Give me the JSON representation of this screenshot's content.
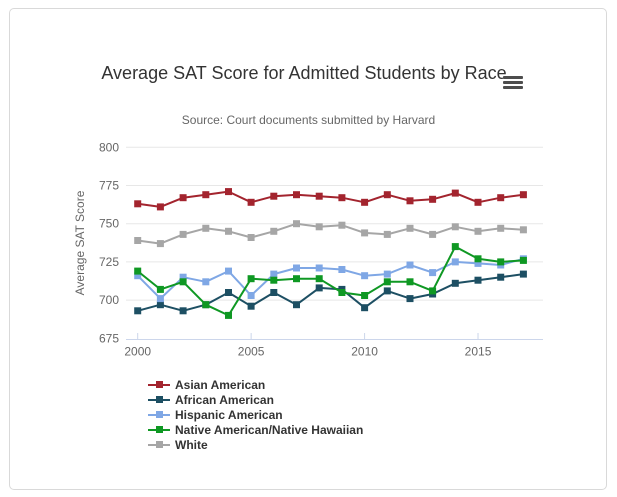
{
  "export_menu": {
    "icon": "hamburger-menu-icon"
  },
  "chart_data": {
    "type": "line",
    "title": "Average SAT Score for Admitted Students by Race",
    "subtitle": "Source: Court documents submitted by Harvard",
    "ylabel": "Average SAT Score",
    "ylim": [
      675,
      800
    ],
    "yticks": [
      675,
      700,
      725,
      750,
      775,
      800
    ],
    "xticks": [
      2000,
      2005,
      2010,
      2015
    ],
    "grid": "horizontal",
    "legend_position": "bottom",
    "x": [
      2000,
      2001,
      2002,
      2003,
      2004,
      2005,
      2006,
      2007,
      2008,
      2009,
      2010,
      2011,
      2012,
      2013,
      2014,
      2015,
      2016,
      2017
    ],
    "series": [
      {
        "name": "Asian American",
        "color": "#a3242e",
        "values": [
          763,
          761,
          767,
          769,
          771,
          764,
          768,
          769,
          768,
          767,
          764,
          769,
          765,
          766,
          770,
          764,
          767,
          769
        ]
      },
      {
        "name": "African American",
        "color": "#1d4f63",
        "values": [
          693,
          697,
          693,
          697,
          705,
          696,
          705,
          697,
          708,
          707,
          695,
          706,
          701,
          704,
          711,
          713,
          715,
          717
        ]
      },
      {
        "name": "Hispanic American",
        "color": "#7fa7e5",
        "values": [
          716,
          701,
          715,
          712,
          719,
          703,
          717,
          721,
          721,
          720,
          716,
          717,
          723,
          718,
          725,
          724,
          723,
          727
        ]
      },
      {
        "name": "Native American/Native Hawaiian",
        "color": "#0f9823",
        "values": [
          719,
          707,
          712,
          697,
          690,
          714,
          713,
          714,
          714,
          705,
          703,
          712,
          712,
          706,
          735,
          727,
          725,
          726
        ]
      },
      {
        "name": "White",
        "color": "#a6a6a6",
        "values": [
          739,
          737,
          743,
          747,
          745,
          741,
          745,
          750,
          748,
          749,
          744,
          743,
          747,
          743,
          748,
          745,
          747,
          746
        ]
      }
    ]
  }
}
